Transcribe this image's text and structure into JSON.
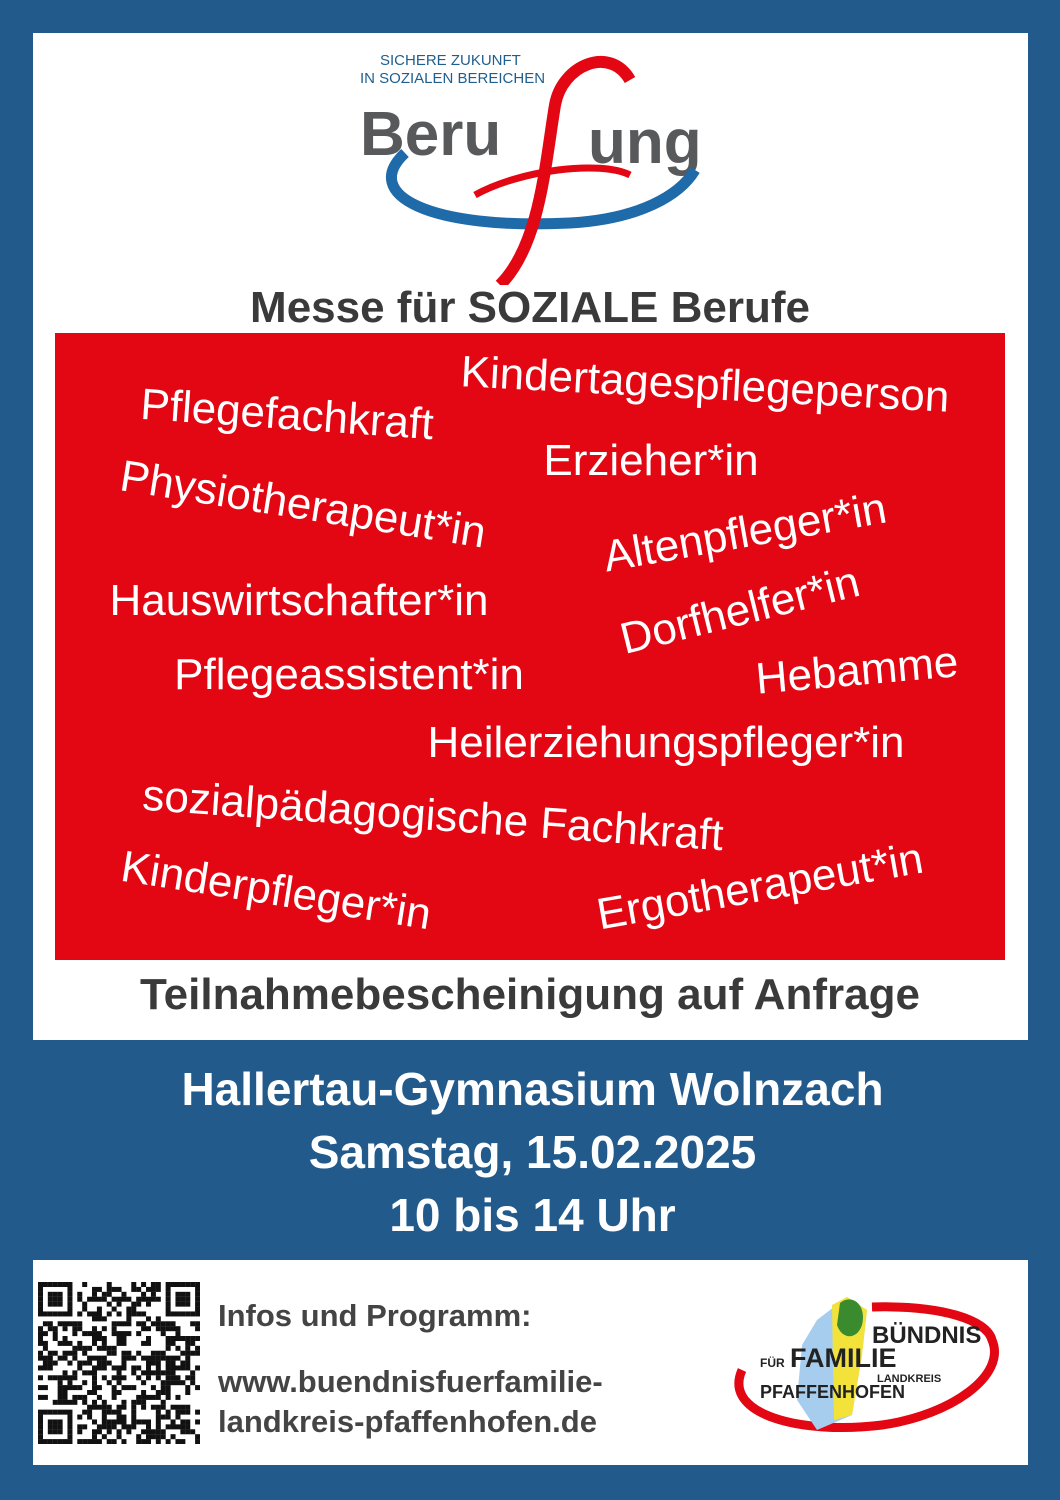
{
  "logo_top": {
    "tagline_1": "SICHERE ZUKUNFT",
    "tagline_2": "IN SOZIALEN BEREICHEN",
    "word_left": "Beru",
    "word_right": "ung"
  },
  "headline": "Messe für SOZIALE Berufe",
  "professions": [
    "Kindertagespflegeperson",
    "Pflegefachkraft",
    "Erzieher*in",
    "Physiotherapeut*in",
    "Altenpfleger*in",
    "Hauswirtschafter*in",
    "Dorfhelfer*in",
    "Pflegeassistent*in",
    "Hebamme",
    "Heilerziehungspfleger*in",
    "sozialpädagogische Fachkraft",
    "Kinderpfleger*in",
    "Ergotherapeut*in"
  ],
  "certificate_note": "Teilnahmebescheinigung auf Anfrage",
  "event": {
    "location": "Hallertau-Gymnasium Wolnzach",
    "date": "Samstag, 15.02.2025",
    "time": "10 bis 14 Uhr"
  },
  "info": {
    "label": "Infos und Programm:",
    "url_line_1": "www.buendnisfuerfamilie-",
    "url_line_2": "landkreis-pfaffenhofen.de"
  },
  "logo_bottom": {
    "line_1": "BÜNDNIS",
    "line_2a": "FÜR",
    "line_2b": "FAMILIE",
    "line_3": "LANDKREIS",
    "line_4": "PFAFFENHOFEN"
  },
  "colors": {
    "background": "#215a8b",
    "red": "#e30613",
    "text_dark": "#3a3a3a"
  }
}
